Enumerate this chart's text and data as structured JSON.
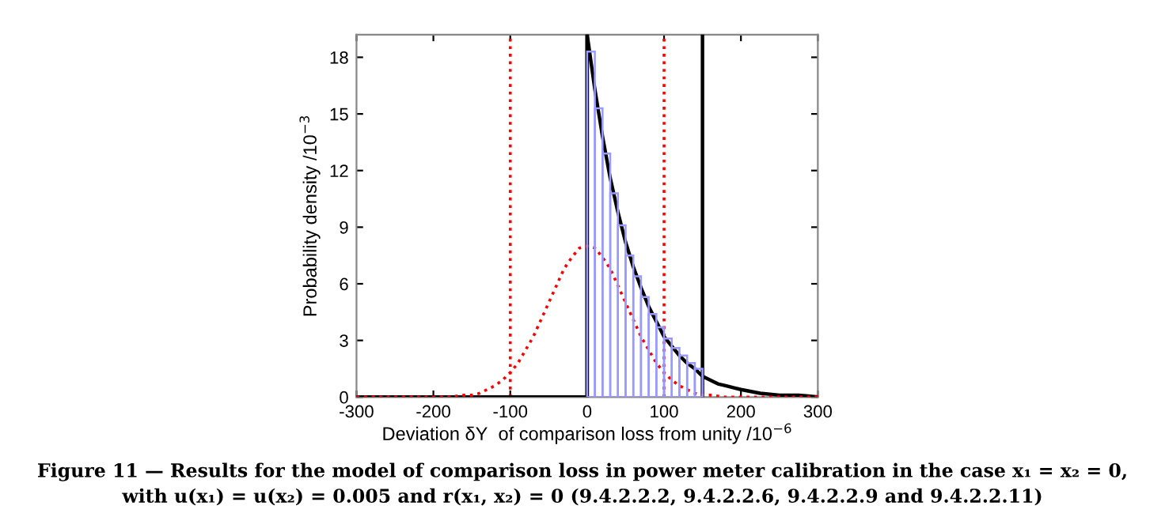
{
  "chart_data": {
    "type": "histogram",
    "xlabel": "Deviation δY  of comparison loss from unity /10$^{−6}$",
    "ylabel": "Probability density /10$^{−3}$",
    "bins": [
      0,
      10,
      20,
      30,
      40,
      50,
      60,
      70,
      80,
      90,
      100,
      110,
      120,
      130,
      140,
      150
    ],
    "values": [
      18.3,
      15.3,
      12.9,
      10.8,
      9.1,
      7.5,
      6.4,
      5.3,
      4.4,
      3.7,
      3.1,
      2.6,
      2.2,
      1.8,
      1.5
    ],
    "color": "#9999ff",
    "series": [
      {
        "type": "line",
        "color": "#000000",
        "line_style": "solid",
        "x": [
          -300,
          0,
          0,
          10,
          20,
          30,
          40,
          50,
          60,
          70,
          80,
          90,
          100,
          110,
          120,
          130,
          140,
          150,
          160,
          170,
          180,
          190,
          200,
          225,
          250,
          275,
          300
        ],
        "values": [
          0,
          0,
          19.2,
          16.3,
          13.8,
          11.6,
          9.8,
          8.2,
          6.9,
          5.8,
          4.8,
          4.0,
          3.2,
          2.7,
          2.2,
          1.8,
          1.5,
          1.1,
          0.9,
          0.7,
          0.6,
          0.5,
          0.4,
          0.2,
          0.1,
          0.1,
          0.0
        ]
      },
      {
        "type": "line",
        "color": "#ff0000",
        "line_style": "dotted",
        "x": [
          -300,
          -200,
          -180,
          -160,
          -150,
          -140,
          -130,
          -120,
          -110,
          -100,
          -90,
          -80,
          -70,
          -60,
          -50,
          -40,
          -30,
          -20,
          -10,
          0,
          10,
          20,
          30,
          40,
          50,
          60,
          70,
          80,
          90,
          100,
          110,
          120,
          130,
          140,
          150,
          160,
          180,
          200,
          300
        ],
        "values": [
          0,
          0,
          0,
          0.1,
          0.1,
          0.2,
          0.4,
          0.6,
          0.9,
          1.3,
          1.8,
          2.5,
          3.2,
          4.1,
          5.0,
          5.9,
          6.8,
          7.4,
          7.9,
          8.0,
          7.9,
          7.4,
          6.8,
          5.9,
          5.0,
          4.1,
          3.2,
          2.5,
          1.8,
          1.3,
          0.9,
          0.6,
          0.4,
          0.2,
          0.1,
          0.1,
          0,
          0,
          0
        ]
      }
    ],
    "ref_lines": [
      {
        "axis": "x",
        "value": -100,
        "color": "#ff0000",
        "line_style": "dotted"
      },
      {
        "axis": "x",
        "value": 100,
        "color": "#ff0000",
        "line_style": "dotted"
      },
      {
        "axis": "x",
        "value": 0,
        "color": "#000000",
        "line_style": "solid"
      },
      {
        "axis": "x",
        "value": 150,
        "color": "#000000",
        "line_style": "solid"
      }
    ],
    "xlim": [
      -300,
      300
    ],
    "xticks": [
      -300,
      -200,
      -100,
      0,
      100,
      200,
      300
    ],
    "ylim": [
      0,
      19.2
    ],
    "yticks": [
      0,
      3,
      6,
      9,
      12,
      15,
      18
    ],
    "grid": false,
    "legend": false,
    "marker": "none",
    "annotations": [
      "Figure 11 — Results for the model of comparison loss in power meter calibration in the case x₁ = x₂ = 0,",
      "with u(x₁) = u(x₂) = 0.005 and r(x₁, x₂) = 0 (9.4.2.2.2, 9.4.2.2.6, 9.4.2.2.9 and 9.4.2.2.11)"
    ]
  }
}
